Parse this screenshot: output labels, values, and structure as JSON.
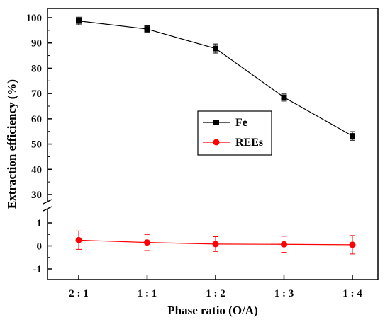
{
  "chart_data": {
    "type": "line",
    "xlabel": "Phase ratio (O/A)",
    "ylabel": "Extraction efficiency (%)",
    "categories": [
      "2 : 1",
      "1 : 1",
      "1 : 2",
      "1 : 3",
      "1 : 4"
    ],
    "y_axis": {
      "broken": true,
      "upper_segment": {
        "range": [
          30,
          100
        ],
        "ticks": [
          30,
          40,
          50,
          60,
          70,
          80,
          90,
          100
        ]
      },
      "lower_segment": {
        "range": [
          -2,
          1.8
        ],
        "ticks": [
          -1,
          0,
          1
        ]
      }
    },
    "legend_position": "center-right",
    "series": [
      {
        "name": "Fe",
        "color": "#000000",
        "marker": "square",
        "values": [
          98.7,
          95.5,
          87.8,
          68.5,
          53.2
        ],
        "errors": [
          1.5,
          1.3,
          1.8,
          1.5,
          1.7
        ]
      },
      {
        "name": "REEs",
        "color": "#ff0000",
        "marker": "circle",
        "values": [
          0.25,
          0.15,
          0.08,
          0.07,
          0.05
        ],
        "errors": [
          0.4,
          0.35,
          0.32,
          0.35,
          0.4
        ]
      }
    ]
  }
}
